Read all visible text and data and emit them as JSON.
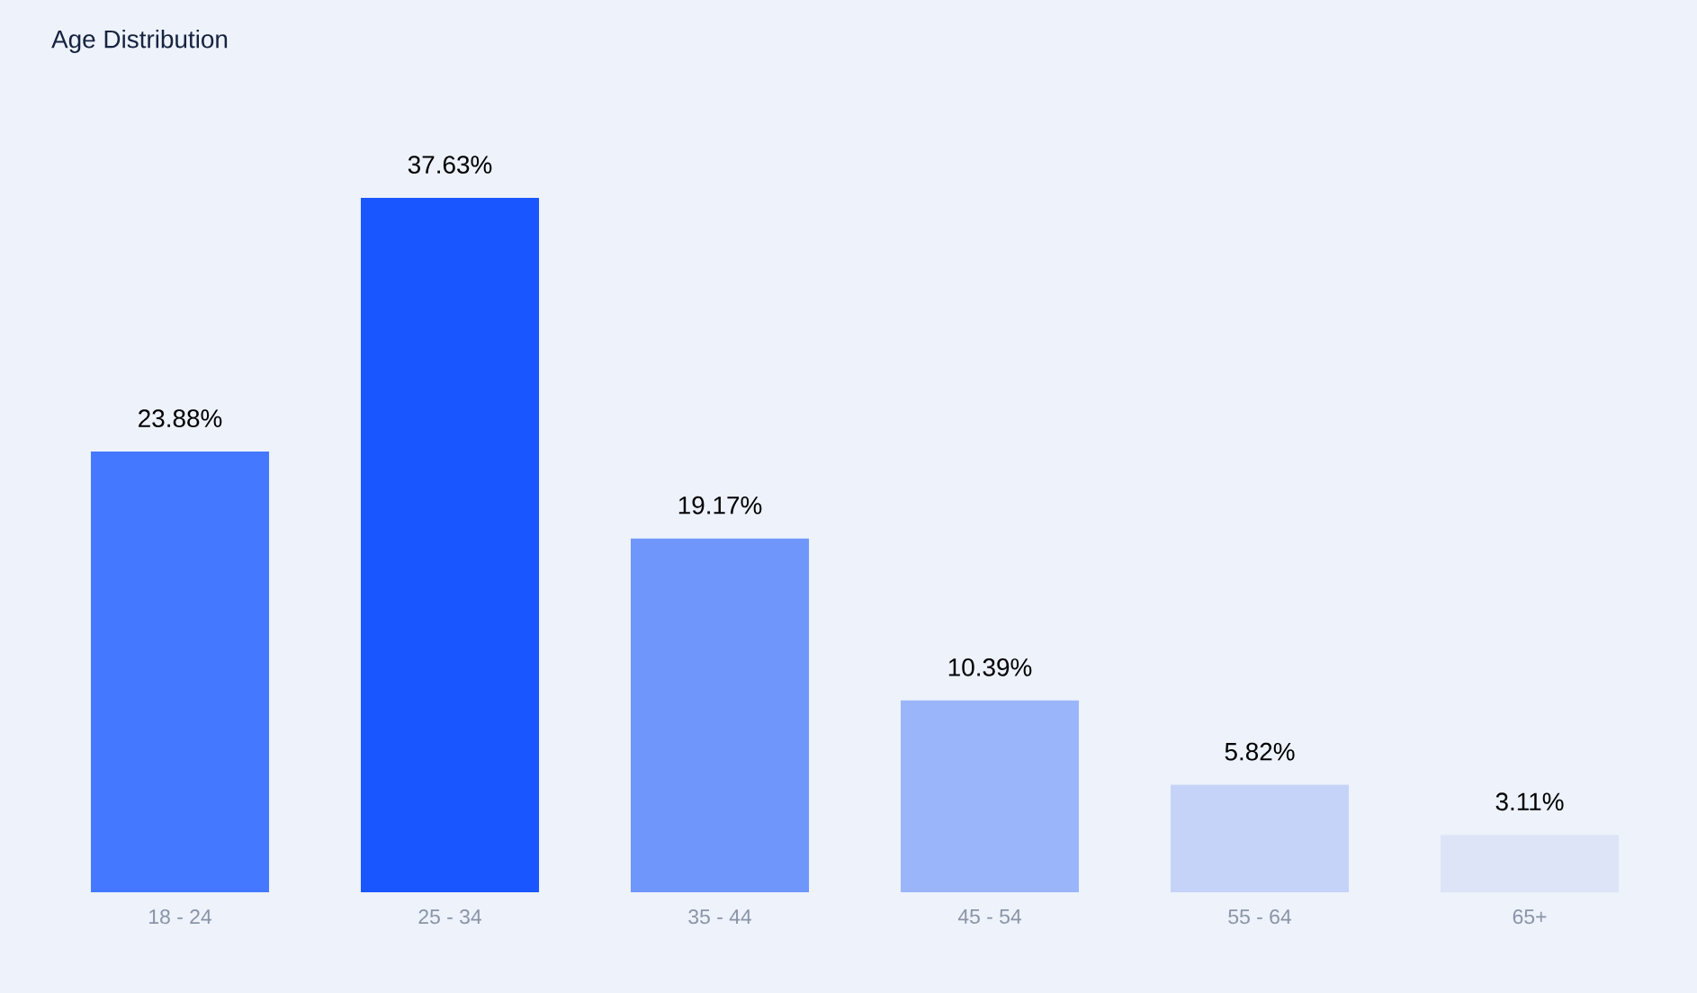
{
  "chart_data": {
    "type": "bar",
    "title": "Age Distribution",
    "categories": [
      "18 - 24",
      "25 - 34",
      "35 - 44",
      "45 - 54",
      "55 - 64",
      "65+"
    ],
    "values": [
      23.88,
      37.63,
      19.17,
      10.39,
      5.82,
      3.11
    ],
    "colors": [
      "#4478ff",
      "#1a56ff",
      "#6e96fb",
      "#9bb5fa",
      "#c5d3f8",
      "#dde4f7"
    ],
    "value_labels": [
      "23.88%",
      "37.63%",
      "19.17%",
      "10.39%",
      "5.82%",
      "3.11%"
    ],
    "grid": false
  }
}
